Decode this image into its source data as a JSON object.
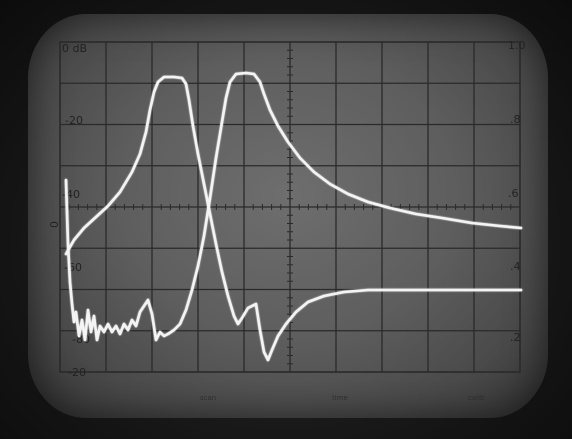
{
  "scope": {
    "left_scale": [
      "0 dB",
      "-20",
      "-40",
      "-60",
      "-80",
      "-20"
    ],
    "right_scale": [
      "1.0",
      ".8",
      ".6",
      ".4",
      ".2"
    ],
    "side_marker": "0",
    "bottom_marks": [
      "scan",
      "time",
      "calib"
    ],
    "trace_color": "#f4f4f4",
    "graticule": {
      "divisions_x": 10,
      "divisions_y": 8
    }
  }
}
